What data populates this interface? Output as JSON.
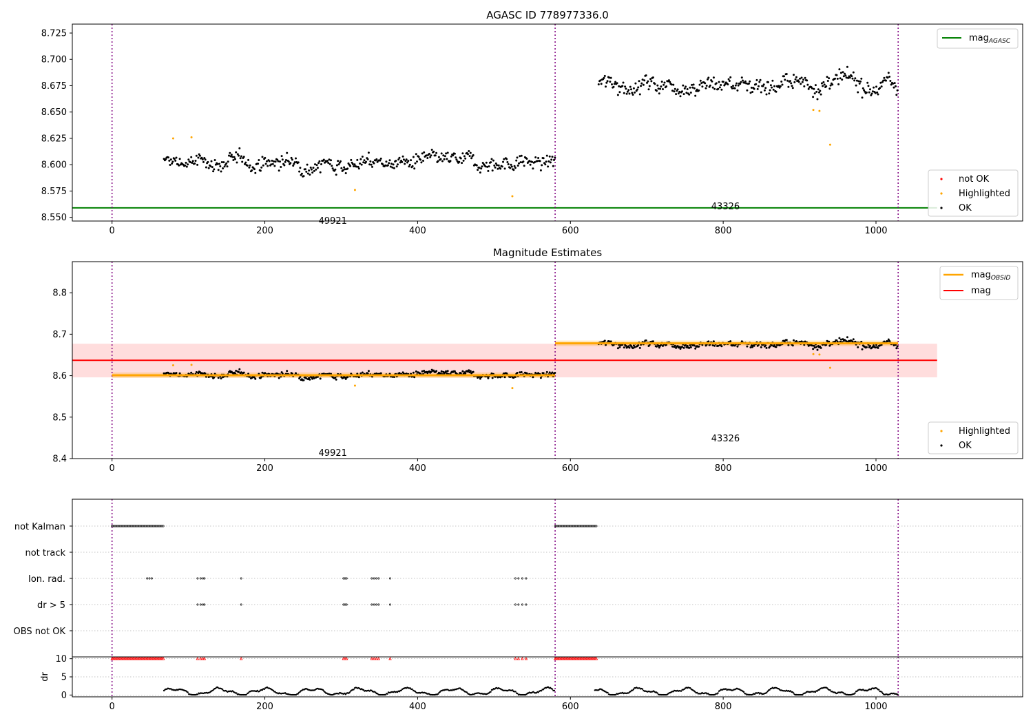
{
  "chart_data": [
    {
      "type": "scatter",
      "title": "AGASC ID 778977336.0",
      "xlabel": "",
      "ylabel": "",
      "xlim": [
        -52,
        1192
      ],
      "ylim": [
        8.5465,
        8.7335
      ],
      "x_ticks": [
        0,
        200,
        400,
        600,
        800,
        1000
      ],
      "y_ticks": [
        8.55,
        8.575,
        8.6,
        8.625,
        8.65,
        8.675,
        8.7,
        8.725
      ],
      "x_tick_labels": [
        "0",
        "200",
        "400",
        "600",
        "800",
        "1000"
      ],
      "y_tick_labels": [
        "8.550",
        "8.575",
        "8.600",
        "8.625",
        "8.650",
        "8.675",
        "8.700",
        "8.725"
      ],
      "grid": false,
      "obs_boundaries": [
        0,
        580,
        1029
      ],
      "obs_labels": [
        {
          "text": "49921",
          "x": 289,
          "y": 8.547
        },
        {
          "text": "43326",
          "x": 803,
          "y": 8.561
        }
      ],
      "agasc_mag": 8.559,
      "segments": [
        {
          "x_start": 68,
          "x_end": 580,
          "mean": 8.602,
          "noise": 0.0065
        },
        {
          "x_start": 637,
          "x_end": 1029,
          "mean": 8.677,
          "noise": 0.0075
        }
      ],
      "highlighted": [
        {
          "x": 80,
          "y": 8.625
        },
        {
          "x": 104,
          "y": 8.626
        },
        {
          "x": 318,
          "y": 8.576
        },
        {
          "x": 524,
          "y": 8.57
        },
        {
          "x": 918,
          "y": 8.652
        },
        {
          "x": 926,
          "y": 8.651
        },
        {
          "x": 940,
          "y": 8.619
        }
      ],
      "legend_top": {
        "position": "top-right",
        "entries": [
          {
            "label": "mag",
            "sub": "AGASC",
            "color": "#008000"
          }
        ]
      },
      "legend_bottom": {
        "position": "lower-right",
        "entries": [
          {
            "label": "not OK",
            "color": "#ff0000"
          },
          {
            "label": "Highlighted",
            "color": "#ffa500"
          },
          {
            "label": "OK",
            "color": "#000000"
          }
        ]
      }
    },
    {
      "type": "scatter",
      "title": "Magnitude Estimates",
      "xlabel": "",
      "ylabel": "",
      "xlim": [
        -52,
        1192
      ],
      "ylim": [
        8.4,
        8.875
      ],
      "x_ticks": [
        0,
        200,
        400,
        600,
        800,
        1000
      ],
      "y_ticks": [
        8.4,
        8.5,
        8.6,
        8.7,
        8.8
      ],
      "x_tick_labels": [
        "0",
        "200",
        "400",
        "600",
        "800",
        "1000"
      ],
      "y_tick_labels": [
        "8.4",
        "8.5",
        "8.6",
        "8.7",
        "8.8"
      ],
      "grid": false,
      "obs_labels": [
        {
          "text": "49921",
          "x": 289,
          "y": 8.415
        },
        {
          "text": "43326",
          "x": 803,
          "y": 8.45
        }
      ],
      "mag": 8.637,
      "mag_band": [
        8.596,
        8.677
      ],
      "mag_x_range": [
        -52,
        1080
      ],
      "mag_obsid": [
        {
          "x_start": 0,
          "x_end": 580,
          "value": 8.601
        },
        {
          "x_start": 580,
          "x_end": 1029,
          "value": 8.678
        }
      ],
      "legend_top": {
        "position": "top-right",
        "entries": [
          {
            "label": "mag",
            "sub": "OBSID",
            "color": "#ffa500"
          },
          {
            "label": "mag",
            "color": "#ff0000"
          }
        ]
      },
      "legend_bottom": {
        "position": "lower-right",
        "entries": [
          {
            "label": "Highlighted",
            "color": "#ffa500"
          },
          {
            "label": "OK",
            "color": "#000000"
          }
        ]
      }
    },
    {
      "type": "scatter",
      "title": "",
      "xlabel": "",
      "ylabel": "",
      "xlim": [
        -52,
        1192
      ],
      "flag_rows": [
        "not Kalman",
        "not track",
        "Ion. rad.",
        "dr > 5",
        "OBS not OK"
      ],
      "grid": true,
      "not_kalman_ranges": [
        [
          0,
          68
        ],
        [
          580,
          635
        ]
      ],
      "ion_rad_x": [
        46,
        49,
        52,
        112,
        116,
        119,
        121,
        169,
        303,
        305,
        307,
        340,
        343,
        346,
        349,
        364,
        528,
        532,
        537,
        542
      ],
      "dr_gt5_x": [
        112,
        116,
        119,
        121,
        169,
        303,
        305,
        307,
        340,
        343,
        346,
        349,
        364,
        528,
        532,
        537,
        542
      ]
    },
    {
      "type": "scatter",
      "title": "",
      "xlabel": "",
      "ylabel": "dr",
      "xlim": [
        -52,
        1192
      ],
      "ylim": [
        -0.5,
        10.5
      ],
      "x_ticks": [
        0,
        200,
        400,
        600,
        800,
        1000
      ],
      "y_ticks": [
        0,
        5,
        10
      ],
      "x_tick_labels": [
        "0",
        "200",
        "400",
        "600",
        "800",
        "1000"
      ],
      "y_tick_labels": [
        "0",
        "5",
        "10"
      ],
      "grid": true,
      "capped_value": 10,
      "segments": [
        [
          68,
          580
        ],
        [
          632,
          1029
        ]
      ]
    }
  ],
  "colors": {
    "ok": "#000000",
    "not_ok": "#ff0000",
    "highlighted": "#ffa500",
    "agasc": "#008000",
    "mag": "#ff0000",
    "mag_band": "#ffdddd",
    "obsid": "#ffa500",
    "obs_boundary": "#800080",
    "grid": "#b0b0b0"
  }
}
